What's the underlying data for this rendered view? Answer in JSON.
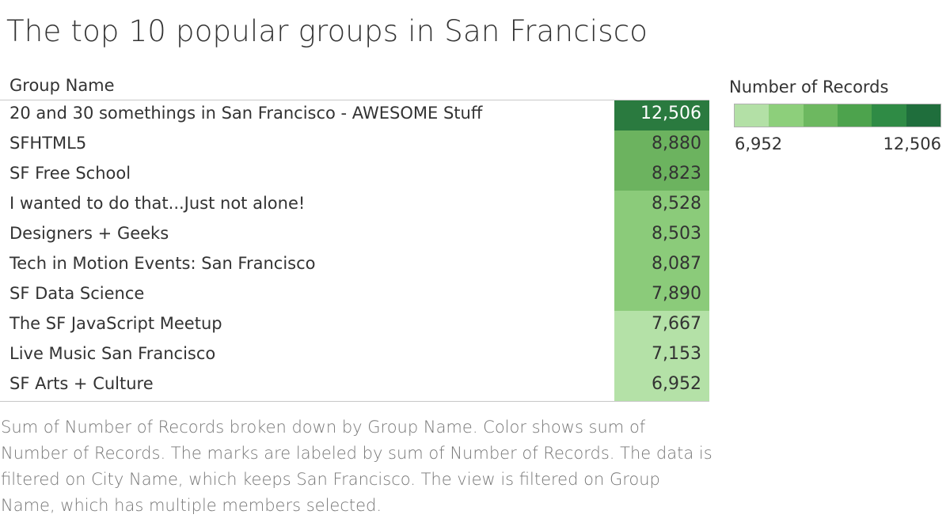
{
  "title": "The top 10 popular groups in San Francisco",
  "column_header": "Group Name",
  "legend": {
    "title": "Number of Records",
    "min_label": "6,952",
    "max_label": "12,506",
    "colors": [
      "#b3e0a6",
      "#8dcf7b",
      "#6db860",
      "#4da34d",
      "#2f8b45",
      "#1f6e3c"
    ]
  },
  "chart_data": {
    "type": "table",
    "title": "The top 10 popular groups in San Francisco",
    "column": "Group Name",
    "measure": "Number of Records",
    "rows": [
      {
        "name": "20 and 30 somethings in San Francisco - AWESOME Stuff",
        "value": 12506,
        "label": "12,506",
        "color": "#2a7a3f"
      },
      {
        "name": "SFHTML5",
        "value": 8880,
        "label": "8,880",
        "color": "#6cb35f"
      },
      {
        "name": "SF Free School",
        "value": 8823,
        "label": "8,823",
        "color": "#6cb35f"
      },
      {
        "name": "I wanted to do that...Just not alone!",
        "value": 8528,
        "label": "8,528",
        "color": "#8bcb7a"
      },
      {
        "name": "Designers + Geeks",
        "value": 8503,
        "label": "8,503",
        "color": "#8bcb7a"
      },
      {
        "name": "Tech in Motion Events: San Francisco",
        "value": 8087,
        "label": "8,087",
        "color": "#8bcb7a"
      },
      {
        "name": "SF Data Science",
        "value": 7890,
        "label": "7,890",
        "color": "#8bcb7a"
      },
      {
        "name": "The SF JavaScript Meetup",
        "value": 7667,
        "label": "7,667",
        "color": "#b4e1a7"
      },
      {
        "name": "Live Music San Francisco",
        "value": 7153,
        "label": "7,153",
        "color": "#b4e1a7"
      },
      {
        "name": "SF Arts + Culture",
        "value": 6952,
        "label": "6,952",
        "color": "#b4e1a7"
      }
    ]
  },
  "caption": "Sum of Number of Records broken down by Group Name.  Color shows sum of Number of Records. The marks are labeled by sum of Number of Records. The data is filtered on City Name, which keeps San Francisco. The view is filtered on Group Name, which has multiple members selected."
}
